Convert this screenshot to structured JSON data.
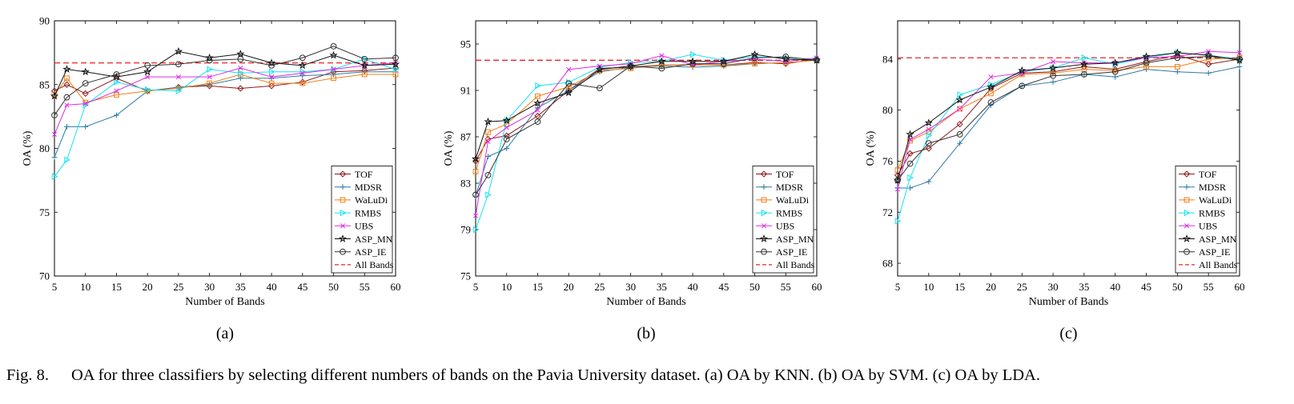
{
  "caption": {
    "figure_number": "Fig. 8.",
    "text": "OA for three classifiers by selecting different numbers of bands on the Pavia University dataset. (a) OA by KNN. (b) OA by SVM. (c) OA by LDA."
  },
  "series_style": {
    "TOF": {
      "color": "#8B1A1A",
      "marker": "diamond"
    },
    "MDSR": {
      "color": "#2B7BA6",
      "marker": "plus"
    },
    "WaLuDi": {
      "color": "#F07F18",
      "marker": "square"
    },
    "RMBS": {
      "color": "#17E2F2",
      "marker": "triangle-right"
    },
    "UBS": {
      "color": "#E22BE2",
      "marker": "x"
    },
    "ASP_MN": {
      "color": "#111111",
      "marker": "star"
    },
    "ASP_IE": {
      "color": "#333333",
      "marker": "circle"
    },
    "All Bands": {
      "color": "#E8262B",
      "marker": "dashed-line"
    }
  },
  "chart_data": [
    {
      "type": "line",
      "panel_label": "(a)",
      "xlabel": "Number of Bands",
      "ylabel": "OA (%)",
      "xlim": [
        5,
        60
      ],
      "ylim": [
        70,
        90
      ],
      "xticks": [
        5,
        10,
        15,
        20,
        25,
        30,
        35,
        40,
        45,
        50,
        55,
        60
      ],
      "yticks": [
        70,
        75,
        80,
        85,
        90
      ],
      "legend_position": "bottom-right",
      "x": [
        5,
        7,
        10,
        15,
        20,
        25,
        30,
        35,
        40,
        45,
        50,
        55,
        60
      ],
      "series": [
        {
          "name": "TOF",
          "values": [
            84.5,
            85.0,
            84.3,
            85.5,
            84.5,
            84.8,
            84.9,
            84.7,
            84.9,
            85.2,
            86.0,
            86.1,
            86.3
          ]
        },
        {
          "name": "MDSR",
          "values": [
            79.3,
            81.7,
            81.7,
            82.6,
            84.5,
            84.8,
            85.0,
            85.5,
            85.5,
            85.7,
            85.8,
            86.0,
            86.0
          ]
        },
        {
          "name": "WaLuDi",
          "values": [
            84.2,
            85.5,
            83.6,
            84.2,
            84.5,
            84.7,
            85.1,
            85.8,
            85.1,
            85.1,
            85.5,
            85.8,
            85.8
          ]
        },
        {
          "name": "RMBS",
          "values": [
            77.8,
            79.1,
            83.4,
            85.2,
            84.6,
            84.5,
            86.2,
            85.9,
            86.0,
            86.0,
            86.2,
            87.0,
            86.2
          ]
        },
        {
          "name": "UBS",
          "values": [
            81.1,
            83.4,
            83.5,
            84.5,
            85.6,
            85.6,
            85.6,
            86.3,
            85.6,
            85.9,
            86.2,
            86.5,
            86.7
          ]
        },
        {
          "name": "ASP_MN",
          "values": [
            84.1,
            86.2,
            86.0,
            85.6,
            86.0,
            87.6,
            87.1,
            87.4,
            86.7,
            86.5,
            87.3,
            86.5,
            86.6
          ]
        },
        {
          "name": "ASP_IE",
          "values": [
            82.6,
            84.0,
            85.1,
            85.8,
            86.5,
            86.6,
            86.9,
            87.0,
            86.5,
            87.1,
            88.0,
            87.0,
            87.1
          ]
        }
      ],
      "reference_lines": [
        {
          "name": "All Bands",
          "value": 86.7
        }
      ]
    },
    {
      "type": "line",
      "panel_label": "(b)",
      "xlabel": "Number of Bands",
      "ylabel": "OA (%)",
      "xlim": [
        5,
        60
      ],
      "ylim": [
        75,
        97
      ],
      "xticks": [
        5,
        10,
        15,
        20,
        25,
        30,
        35,
        40,
        45,
        50,
        55,
        60
      ],
      "yticks": [
        75,
        79,
        83,
        87,
        91,
        95
      ],
      "legend_position": "bottom-right",
      "x": [
        5,
        7,
        10,
        15,
        20,
        25,
        30,
        35,
        40,
        45,
        50,
        55,
        60
      ],
      "series": [
        {
          "name": "TOF",
          "values": [
            84.9,
            86.8,
            87.1,
            88.8,
            91.0,
            92.9,
            93.0,
            93.2,
            93.2,
            93.2,
            93.4,
            93.3,
            93.7
          ]
        },
        {
          "name": "MDSR",
          "values": [
            81.9,
            85.3,
            86.0,
            89.5,
            91.0,
            92.6,
            93.0,
            93.1,
            93.0,
            93.1,
            93.3,
            93.4,
            93.6
          ]
        },
        {
          "name": "WaLuDi",
          "values": [
            84.0,
            87.4,
            88.1,
            90.5,
            91.3,
            92.7,
            92.9,
            93.2,
            93.2,
            93.2,
            93.3,
            93.4,
            93.6
          ]
        },
        {
          "name": "RMBS",
          "values": [
            79.0,
            82.0,
            88.4,
            91.4,
            91.7,
            93.0,
            93.4,
            93.5,
            94.1,
            93.6,
            93.9,
            93.8,
            93.7
          ]
        },
        {
          "name": "UBS",
          "values": [
            80.2,
            86.6,
            87.8,
            89.3,
            92.8,
            93.1,
            93.3,
            94.0,
            93.2,
            93.5,
            93.7,
            93.5,
            93.8
          ]
        },
        {
          "name": "ASP_MN",
          "values": [
            85.1,
            88.3,
            88.4,
            89.9,
            90.8,
            92.8,
            93.1,
            93.5,
            93.5,
            93.5,
            94.1,
            93.7,
            93.6
          ]
        },
        {
          "name": "ASP_IE",
          "values": [
            82.0,
            83.7,
            86.8,
            88.3,
            91.6,
            91.2,
            93.1,
            92.9,
            93.3,
            93.3,
            93.8,
            93.9,
            93.6
          ]
        }
      ],
      "reference_lines": [
        {
          "name": "All Bands",
          "value": 93.6
        }
      ]
    },
    {
      "type": "line",
      "panel_label": "(c)",
      "xlabel": "Number of Bands",
      "ylabel": "OA (%)",
      "xlim": [
        5,
        60
      ],
      "ylim": [
        67,
        87
      ],
      "xticks": [
        5,
        10,
        15,
        20,
        25,
        30,
        35,
        40,
        45,
        50,
        55,
        60
      ],
      "yticks": [
        68,
        72,
        76,
        80,
        84
      ],
      "legend_position": "bottom-right",
      "x": [
        5,
        7,
        10,
        15,
        20,
        25,
        30,
        35,
        40,
        45,
        50,
        55,
        60
      ],
      "series": [
        {
          "name": "TOF",
          "values": [
            74.9,
            76.6,
            77.0,
            78.9,
            81.7,
            82.9,
            83.0,
            83.4,
            83.2,
            83.8,
            84.3,
            83.6,
            84.0
          ]
        },
        {
          "name": "MDSR",
          "values": [
            73.9,
            73.9,
            74.4,
            77.4,
            80.4,
            81.9,
            82.2,
            82.8,
            82.6,
            83.2,
            83.0,
            82.9,
            83.4
          ]
        },
        {
          "name": "WaLuDi",
          "values": [
            75.3,
            77.6,
            78.3,
            80.1,
            81.3,
            82.8,
            82.9,
            83.2,
            83.1,
            83.4,
            83.4,
            84.0,
            84.1
          ]
        },
        {
          "name": "RMBS",
          "values": [
            71.3,
            74.7,
            78.0,
            81.2,
            82.0,
            83.0,
            83.3,
            84.1,
            83.6,
            84.1,
            84.5,
            84.3,
            84.0
          ]
        },
        {
          "name": "UBS",
          "values": [
            73.8,
            77.7,
            78.5,
            80.1,
            82.6,
            82.9,
            83.8,
            83.7,
            83.7,
            84.1,
            84.2,
            84.6,
            84.5
          ]
        },
        {
          "name": "ASP_MN",
          "values": [
            74.5,
            78.1,
            79.0,
            80.8,
            81.8,
            83.1,
            83.3,
            83.6,
            83.7,
            84.2,
            84.5,
            84.3,
            83.9
          ]
        },
        {
          "name": "ASP_IE",
          "values": [
            74.5,
            75.8,
            77.4,
            78.1,
            80.6,
            81.9,
            82.7,
            82.8,
            83.0,
            83.7,
            84.1,
            84.2,
            84.0
          ]
        }
      ],
      "reference_lines": [
        {
          "name": "All Bands",
          "value": 84.1
        }
      ]
    }
  ]
}
